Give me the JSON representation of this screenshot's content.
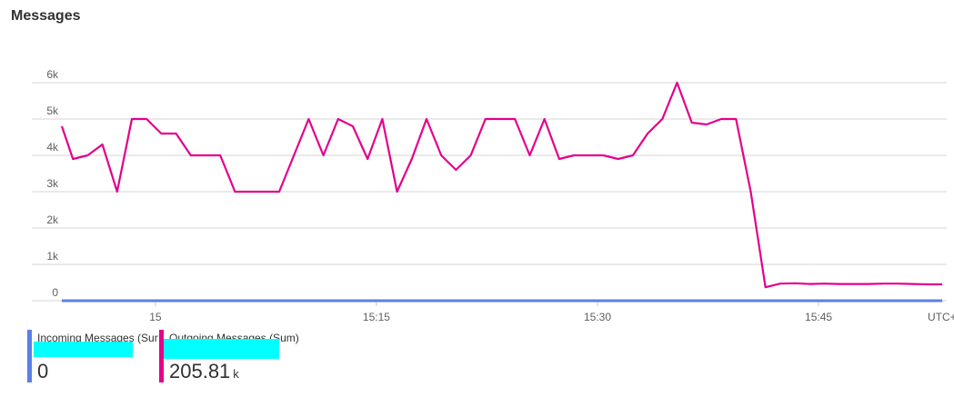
{
  "header": {
    "title": "Messages"
  },
  "chart_data": {
    "type": "line",
    "x": [
      -6.35,
      -5.6,
      -4.6,
      -3.6,
      -2.6,
      -1.6,
      -0.6,
      0.4,
      1.4,
      2.4,
      3.4,
      4.4,
      5.4,
      6.4,
      7.4,
      8.4,
      9.4,
      10.4,
      11.4,
      12.4,
      13.4,
      14.4,
      15.4,
      16.4,
      17.4,
      18.4,
      19.4,
      20.4,
      21.4,
      22.4,
      23.4,
      24.4,
      25.4,
      26.4,
      27.4,
      28.4,
      29.4,
      30.4,
      31.4,
      32.4,
      33.4,
      34.4,
      35.4,
      36.4,
      37.4,
      38.4,
      39.4,
      40.4,
      41.4,
      42.4,
      43.4,
      44.4,
      45.4,
      46.4,
      47.4,
      48.4,
      49.4,
      50.4,
      51.4,
      52.4,
      53.4
    ],
    "series": [
      {
        "name": "Incoming Messages (Sum)",
        "color": "#5b7fe8",
        "legend_value": "0",
        "values": [
          0,
          0,
          0,
          0,
          0,
          0,
          0,
          0,
          0,
          0,
          0,
          0,
          0,
          0,
          0,
          0,
          0,
          0,
          0,
          0,
          0,
          0,
          0,
          0,
          0,
          0,
          0,
          0,
          0,
          0,
          0,
          0,
          0,
          0,
          0,
          0,
          0,
          0,
          0,
          0,
          0,
          0,
          0,
          0,
          0,
          0,
          0,
          0,
          0,
          0,
          0,
          0,
          0,
          0,
          0,
          0,
          0,
          0,
          0,
          0,
          0
        ]
      },
      {
        "name": "Outgoing Messages (Sum)",
        "color": "#e3008c",
        "legend_value": "205.81",
        "legend_unit": "k",
        "values": [
          4800,
          3900,
          4000,
          4300,
          3000,
          5000,
          5000,
          4600,
          4600,
          4000,
          4000,
          4000,
          3000,
          3000,
          3000,
          3000,
          4000,
          5000,
          4000,
          5000,
          4800,
          3900,
          5000,
          3000,
          3900,
          5000,
          4000,
          3600,
          4000,
          5000,
          5000,
          5000,
          4000,
          5000,
          3900,
          4000,
          4000,
          4000,
          3900,
          4000,
          4600,
          5000,
          6000,
          4900,
          4850,
          5000,
          5000,
          3000,
          370,
          470,
          480,
          460,
          470,
          460,
          460,
          460,
          470,
          470,
          460,
          450,
          450
        ]
      }
    ],
    "xlim": [
      -6.35,
      53.7
    ],
    "xticks": [
      {
        "value": 0,
        "label": "15"
      },
      {
        "value": 15,
        "label": "15:15"
      },
      {
        "value": 30,
        "label": "15:30"
      },
      {
        "value": 45,
        "label": "15:45"
      }
    ],
    "x_axis_label": "UTC+",
    "ylim": [
      0,
      6000
    ],
    "yticks": [
      0,
      {
        "value": 1000,
        "label": "1k"
      },
      {
        "value": 2000,
        "label": "2k"
      },
      {
        "value": 3000,
        "label": "3k"
      },
      {
        "value": 4000,
        "label": "4k"
      },
      {
        "value": 5000,
        "label": "5k"
      },
      {
        "value": 6000,
        "label": "6k"
      }
    ],
    "grid": true
  }
}
